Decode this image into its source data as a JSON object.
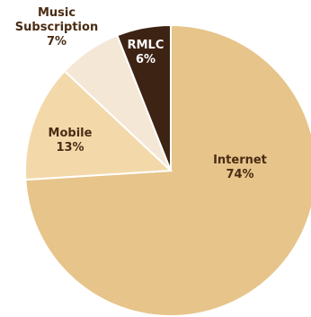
{
  "chart_data": {
    "type": "pie",
    "title": "",
    "slices": [
      {
        "label": "Internet",
        "value": 74,
        "value_label": "74%",
        "color": "#e6c48a",
        "text_color": "#4a2c14"
      },
      {
        "label": "Mobile",
        "value": 13,
        "value_label": "13%",
        "color": "#f3d9aa",
        "text_color": "#4a2c14"
      },
      {
        "label": "Music Subscription",
        "value": 7,
        "value_label": "7%",
        "color": "#f4e7d6",
        "text_color": "#4a2c14"
      },
      {
        "label": "RMLC",
        "value": 6,
        "value_label": "6%",
        "color": "#3d2313",
        "text_color": "#ffffff"
      }
    ],
    "start": "12 o'clock",
    "direction": "clockwise",
    "legend": "none"
  }
}
